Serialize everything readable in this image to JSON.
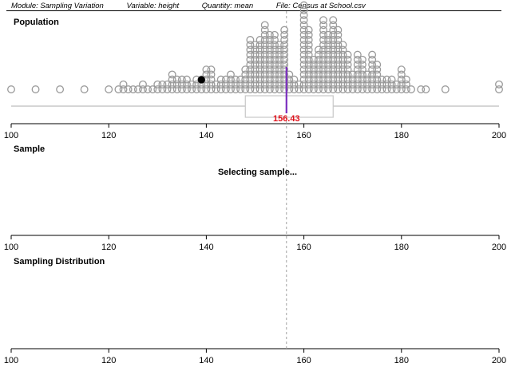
{
  "header": {
    "module": "Module: Sampling Variation",
    "variable": "Variable: height",
    "quantity": "Quantity: mean",
    "file": "File: Census at School.csv"
  },
  "panels": {
    "population": "Population",
    "sample": "Sample",
    "sampling_distribution": "Sampling Distribution"
  },
  "status": "Selecting sample...",
  "colors": {
    "dots": "#9a9a9a",
    "highlight": "#000000",
    "mean_line": "#7b2fbf",
    "mean_label": "#e0101a",
    "box": "#c8c8c8",
    "guide": "#a0a0a0"
  },
  "chart_data": {
    "type": "scatter",
    "xlim": [
      100,
      200
    ],
    "ticks": [
      100,
      120,
      140,
      160,
      180,
      200
    ],
    "mean": 156.43,
    "mean_label": "156.43",
    "highlighted_point": 139,
    "boxplot": {
      "q1": 148,
      "median": 156.43,
      "q3": 166,
      "min": 100,
      "max": 200
    },
    "dot_counts": [
      [
        100,
        1
      ],
      [
        105,
        1
      ],
      [
        110,
        1
      ],
      [
        115,
        1
      ],
      [
        120,
        1
      ],
      [
        122,
        1
      ],
      [
        123,
        2
      ],
      [
        124,
        1
      ],
      [
        125,
        1
      ],
      [
        126,
        1
      ],
      [
        127,
        2
      ],
      [
        128,
        1
      ],
      [
        129,
        1
      ],
      [
        130,
        2
      ],
      [
        131,
        2
      ],
      [
        132,
        2
      ],
      [
        133,
        4
      ],
      [
        134,
        3
      ],
      [
        135,
        3
      ],
      [
        136,
        3
      ],
      [
        137,
        2
      ],
      [
        138,
        3
      ],
      [
        139,
        3
      ],
      [
        140,
        5
      ],
      [
        141,
        5
      ],
      [
        142,
        2
      ],
      [
        143,
        3
      ],
      [
        144,
        3
      ],
      [
        145,
        4
      ],
      [
        146,
        3
      ],
      [
        147,
        3
      ],
      [
        148,
        5
      ],
      [
        149,
        11
      ],
      [
        150,
        10
      ],
      [
        151,
        11
      ],
      [
        152,
        14
      ],
      [
        153,
        12
      ],
      [
        154,
        12
      ],
      [
        155,
        10
      ],
      [
        156,
        13
      ],
      [
        157,
        4
      ],
      [
        158,
        3
      ],
      [
        159,
        2
      ],
      [
        160,
        18
      ],
      [
        161,
        13
      ],
      [
        162,
        7
      ],
      [
        163,
        9
      ],
      [
        164,
        15
      ],
      [
        165,
        12
      ],
      [
        166,
        15
      ],
      [
        167,
        13
      ],
      [
        168,
        10
      ],
      [
        169,
        8
      ],
      [
        170,
        4
      ],
      [
        171,
        8
      ],
      [
        172,
        7
      ],
      [
        173,
        4
      ],
      [
        174,
        8
      ],
      [
        175,
        6
      ],
      [
        176,
        3
      ],
      [
        177,
        3
      ],
      [
        178,
        3
      ],
      [
        179,
        2
      ],
      [
        180,
        5
      ],
      [
        181,
        3
      ],
      [
        182,
        1
      ],
      [
        184,
        1
      ],
      [
        185,
        1
      ],
      [
        189,
        1
      ],
      [
        200,
        2
      ]
    ]
  }
}
